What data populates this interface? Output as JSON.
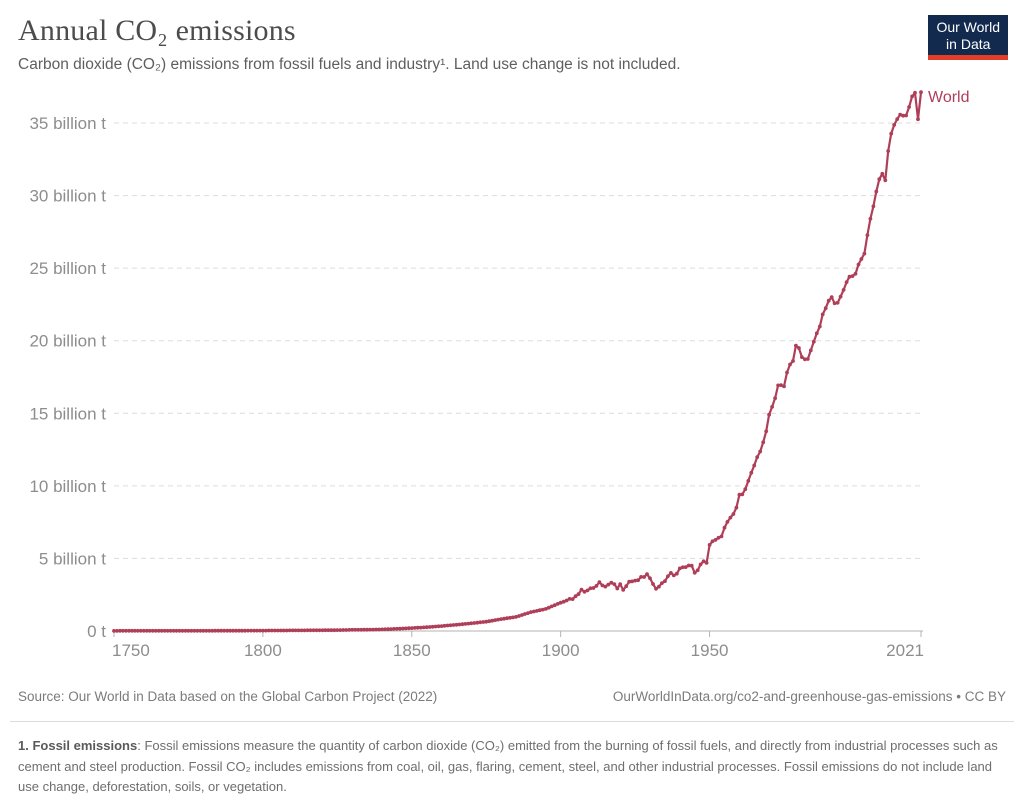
{
  "header": {
    "title": "Annual CO₂ emissions",
    "subtitle": "Carbon dioxide (CO₂) emissions from fossil fuels and industry¹. Land use change is not included.",
    "logo": {
      "line1": "Our World",
      "line2": "in Data"
    }
  },
  "chart_data": {
    "type": "line",
    "title": "Annual CO₂ emissions",
    "xlabel": "",
    "ylabel": "",
    "unit": "billion t",
    "xlim": [
      1750,
      2021
    ],
    "ylim": [
      0,
      37.5
    ],
    "grid": "horizontal-dashed",
    "legend_position": "end-of-line",
    "yticks": [
      {
        "value": 0,
        "label": "0 t"
      },
      {
        "value": 5,
        "label": "5 billion t"
      },
      {
        "value": 10,
        "label": "10 billion t"
      },
      {
        "value": 15,
        "label": "15 billion t"
      },
      {
        "value": 20,
        "label": "20 billion t"
      },
      {
        "value": 25,
        "label": "25 billion t"
      },
      {
        "value": 30,
        "label": "30 billion t"
      },
      {
        "value": 35,
        "label": "35 billion t"
      }
    ],
    "xticks": [
      {
        "value": 1750,
        "label": "1750"
      },
      {
        "value": 1800,
        "label": "1800"
      },
      {
        "value": 1850,
        "label": "1850"
      },
      {
        "value": 1900,
        "label": "1900"
      },
      {
        "value": 1950,
        "label": "1950"
      },
      {
        "value": 2021,
        "label": "2021"
      }
    ],
    "series": [
      {
        "name": "World",
        "color": "#af3f58",
        "points": [
          [
            1750,
            0.01
          ],
          [
            1755,
            0.011
          ],
          [
            1760,
            0.011
          ],
          [
            1765,
            0.012
          ],
          [
            1770,
            0.013
          ],
          [
            1775,
            0.014
          ],
          [
            1780,
            0.016
          ],
          [
            1785,
            0.018
          ],
          [
            1790,
            0.02
          ],
          [
            1795,
            0.025
          ],
          [
            1800,
            0.03
          ],
          [
            1805,
            0.033
          ],
          [
            1810,
            0.04
          ],
          [
            1815,
            0.045
          ],
          [
            1820,
            0.05
          ],
          [
            1825,
            0.06
          ],
          [
            1830,
            0.08
          ],
          [
            1835,
            0.09
          ],
          [
            1840,
            0.11
          ],
          [
            1845,
            0.15
          ],
          [
            1850,
            0.2
          ],
          [
            1855,
            0.26
          ],
          [
            1860,
            0.34
          ],
          [
            1865,
            0.43
          ],
          [
            1870,
            0.53
          ],
          [
            1875,
            0.64
          ],
          [
            1880,
            0.82
          ],
          [
            1885,
            0.97
          ],
          [
            1890,
            1.3
          ],
          [
            1895,
            1.52
          ],
          [
            1900,
            1.95
          ],
          [
            1901,
            2.02
          ],
          [
            1902,
            2.1
          ],
          [
            1903,
            2.21
          ],
          [
            1904,
            2.2
          ],
          [
            1905,
            2.4
          ],
          [
            1906,
            2.54
          ],
          [
            1907,
            2.85
          ],
          [
            1908,
            2.7
          ],
          [
            1909,
            2.8
          ],
          [
            1910,
            2.94
          ],
          [
            1911,
            2.96
          ],
          [
            1912,
            3.11
          ],
          [
            1913,
            3.36
          ],
          [
            1914,
            3.14
          ],
          [
            1915,
            3.06
          ],
          [
            1916,
            3.2
          ],
          [
            1917,
            3.33
          ],
          [
            1918,
            3.23
          ],
          [
            1919,
            2.93
          ],
          [
            1920,
            3.23
          ],
          [
            1921,
            2.83
          ],
          [
            1922,
            3.09
          ],
          [
            1923,
            3.4
          ],
          [
            1924,
            3.42
          ],
          [
            1925,
            3.47
          ],
          [
            1926,
            3.5
          ],
          [
            1927,
            3.73
          ],
          [
            1928,
            3.72
          ],
          [
            1929,
            3.91
          ],
          [
            1930,
            3.63
          ],
          [
            1931,
            3.24
          ],
          [
            1932,
            2.91
          ],
          [
            1933,
            3.05
          ],
          [
            1934,
            3.3
          ],
          [
            1935,
            3.43
          ],
          [
            1936,
            3.77
          ],
          [
            1937,
            4.0
          ],
          [
            1938,
            3.83
          ],
          [
            1939,
            3.95
          ],
          [
            1940,
            4.31
          ],
          [
            1941,
            4.39
          ],
          [
            1942,
            4.4
          ],
          [
            1943,
            4.51
          ],
          [
            1944,
            4.5
          ],
          [
            1945,
            4.01
          ],
          [
            1946,
            4.18
          ],
          [
            1947,
            4.59
          ],
          [
            1948,
            4.8
          ],
          [
            1949,
            4.69
          ],
          [
            1950,
            5.93
          ],
          [
            1951,
            6.18
          ],
          [
            1952,
            6.28
          ],
          [
            1953,
            6.42
          ],
          [
            1954,
            6.52
          ],
          [
            1955,
            7.12
          ],
          [
            1956,
            7.52
          ],
          [
            1957,
            7.81
          ],
          [
            1958,
            8.06
          ],
          [
            1959,
            8.5
          ],
          [
            1960,
            9.39
          ],
          [
            1961,
            9.41
          ],
          [
            1962,
            9.77
          ],
          [
            1963,
            10.34
          ],
          [
            1964,
            10.9
          ],
          [
            1965,
            11.4
          ],
          [
            1966,
            11.98
          ],
          [
            1967,
            12.37
          ],
          [
            1968,
            13.0
          ],
          [
            1969,
            13.76
          ],
          [
            1970,
            14.9
          ],
          [
            1971,
            15.44
          ],
          [
            1972,
            16.04
          ],
          [
            1973,
            16.92
          ],
          [
            1974,
            16.94
          ],
          [
            1975,
            16.85
          ],
          [
            1976,
            17.81
          ],
          [
            1977,
            18.36
          ],
          [
            1978,
            18.6
          ],
          [
            1979,
            19.66
          ],
          [
            1980,
            19.5
          ],
          [
            1981,
            18.87
          ],
          [
            1982,
            18.72
          ],
          [
            1983,
            18.74
          ],
          [
            1984,
            19.33
          ],
          [
            1985,
            19.93
          ],
          [
            1986,
            20.51
          ],
          [
            1987,
            20.98
          ],
          [
            1988,
            21.81
          ],
          [
            1989,
            22.24
          ],
          [
            1990,
            22.76
          ],
          [
            1991,
            23.0
          ],
          [
            1992,
            22.58
          ],
          [
            1993,
            22.61
          ],
          [
            1994,
            23.04
          ],
          [
            1995,
            23.5
          ],
          [
            1996,
            24.04
          ],
          [
            1997,
            24.41
          ],
          [
            1998,
            24.45
          ],
          [
            1999,
            24.61
          ],
          [
            2000,
            25.25
          ],
          [
            2001,
            25.63
          ],
          [
            2002,
            26.0
          ],
          [
            2003,
            27.28
          ],
          [
            2004,
            28.4
          ],
          [
            2005,
            29.26
          ],
          [
            2006,
            30.28
          ],
          [
            2007,
            31.13
          ],
          [
            2008,
            31.5
          ],
          [
            2009,
            31.05
          ],
          [
            2010,
            33.07
          ],
          [
            2011,
            34.27
          ],
          [
            2012,
            34.87
          ],
          [
            2013,
            35.27
          ],
          [
            2014,
            35.58
          ],
          [
            2015,
            35.5
          ],
          [
            2016,
            35.52
          ],
          [
            2017,
            36.1
          ],
          [
            2018,
            36.83
          ],
          [
            2019,
            37.08
          ],
          [
            2020,
            35.26
          ],
          [
            2021,
            37.12
          ]
        ]
      }
    ]
  },
  "footer": {
    "source": "Source: Our World in Data based on the Global Carbon Project (2022)",
    "attribution": "OurWorldInData.org/co2-and-greenhouse-gas-emissions • CC BY"
  },
  "footnote": {
    "label": "1. Fossil emissions",
    "text": ": Fossil emissions measure the quantity of carbon dioxide (CO₂) emitted from the burning of fossil fuels, and directly from industrial processes such as cement and steel production. Fossil CO₂ includes emissions from coal, oil, gas, flaring, cement, steel, and other industrial processes. Fossil emissions do not include land use change, deforestation, soils, or vegetation."
  },
  "colors": {
    "series_world": "#af3f58",
    "gridline": "#dcdcdc",
    "axis": "#b3b3b3",
    "tick_text": "#8d8d8d",
    "logo_navy": "#122a4e",
    "logo_red": "#e23d28"
  }
}
